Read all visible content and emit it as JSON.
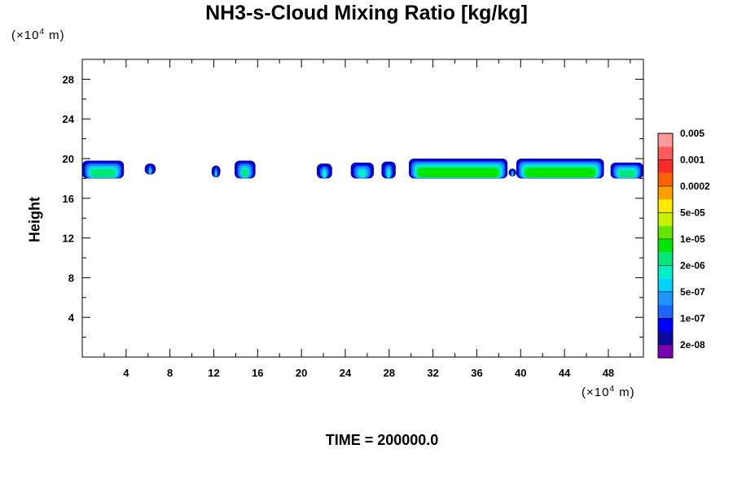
{
  "chart_data": {
    "type": "heatmap",
    "title": "NH3-s-Cloud Mixing Ratio [kg/kg]",
    "ylabel": "Height",
    "xlabel": "",
    "x_unit": {
      "prefix": "(×10",
      "exp": "4",
      "suffix": " m)"
    },
    "y_unit": {
      "prefix": "(×10",
      "exp": "4",
      "suffix": " m)"
    },
    "xlim": [
      0,
      51.2
    ],
    "ylim": [
      0,
      30
    ],
    "x_ticks": [
      4,
      8,
      12,
      16,
      20,
      24,
      28,
      32,
      36,
      40,
      44,
      48
    ],
    "y_ticks": [
      4,
      8,
      12,
      16,
      20,
      24,
      28
    ],
    "annotation": "TIME = 200000.0",
    "colorbar": {
      "colors": [
        "#7a00b4",
        "#0a0aa0",
        "#0000ff",
        "#1e64ff",
        "#1e96ff",
        "#00d2ff",
        "#00f0c8",
        "#00e678",
        "#00e600",
        "#64e600",
        "#c8f000",
        "#ffea00",
        "#ffa000",
        "#ff6000",
        "#ff2a2a",
        "#ff5a5a",
        "#ff9a9a"
      ],
      "labels": [
        "2e-08",
        "1e-07",
        "5e-07",
        "2e-06",
        "1e-05",
        "5e-05",
        "0.0002",
        "0.001",
        "0.005"
      ]
    },
    "cloud_patches": [
      {
        "x": [
          0.0,
          3.8
        ],
        "top": 19.8,
        "bottom": 18.0,
        "max_level": 7
      },
      {
        "x": [
          5.7,
          6.7
        ],
        "top": 19.5,
        "bottom": 18.4,
        "max_level": 5
      },
      {
        "x": [
          11.8,
          12.6
        ],
        "top": 19.3,
        "bottom": 18.1,
        "max_level": 5
      },
      {
        "x": [
          13.9,
          15.8
        ],
        "top": 19.8,
        "bottom": 18.0,
        "max_level": 7
      },
      {
        "x": [
          21.4,
          22.8
        ],
        "top": 19.5,
        "bottom": 18.0,
        "max_level": 6
      },
      {
        "x": [
          24.5,
          26.6
        ],
        "top": 19.6,
        "bottom": 18.0,
        "max_level": 6
      },
      {
        "x": [
          27.3,
          28.6
        ],
        "top": 19.7,
        "bottom": 18.0,
        "max_level": 6
      },
      {
        "x": [
          29.8,
          38.8
        ],
        "top": 20.0,
        "bottom": 18.0,
        "max_level": 8
      },
      {
        "x": [
          38.9,
          39.6
        ],
        "top": 19.0,
        "bottom": 18.2,
        "max_level": 5
      },
      {
        "x": [
          39.6,
          47.6
        ],
        "top": 20.0,
        "bottom": 18.0,
        "max_level": 8
      },
      {
        "x": [
          48.2,
          51.2
        ],
        "top": 19.6,
        "bottom": 18.0,
        "max_level": 7
      }
    ]
  }
}
